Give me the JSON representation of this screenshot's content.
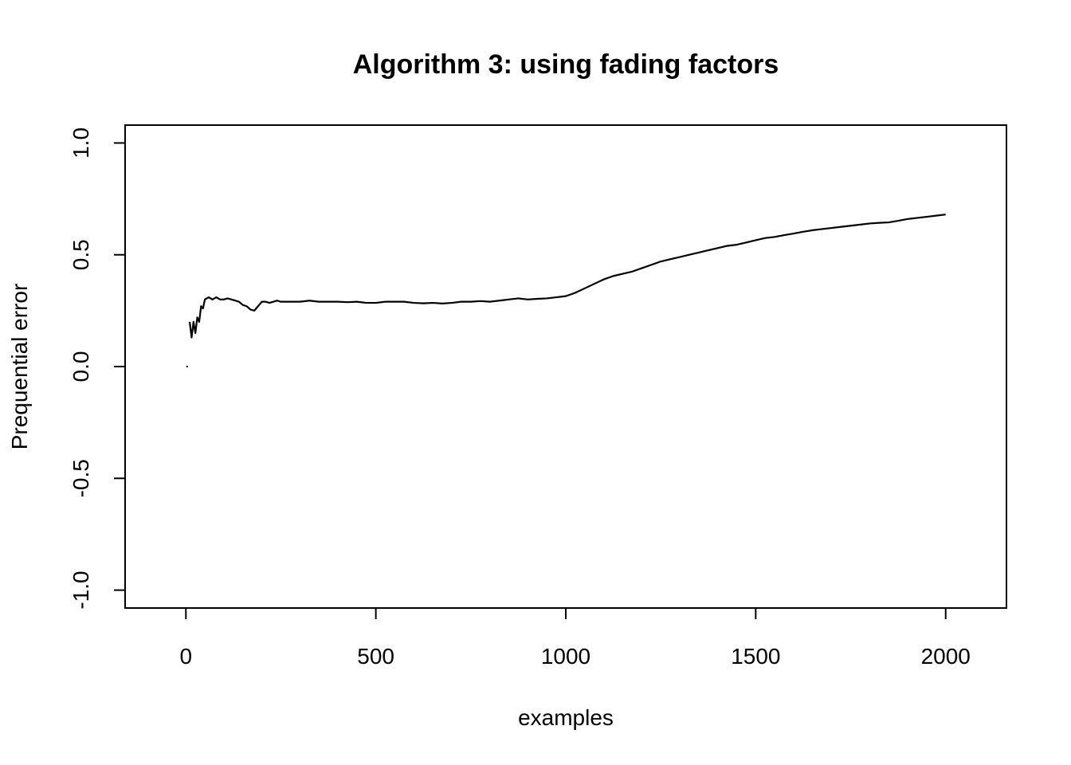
{
  "chart_data": {
    "type": "line",
    "title": "Algorithm 3: using fading factors",
    "xlabel": "examples",
    "ylabel": "Prequential error",
    "xlim": [
      -160,
      2160
    ],
    "ylim": [
      -1.08,
      1.08
    ],
    "xticks": [
      0,
      500,
      1000,
      1500,
      2000
    ],
    "xtick_labels": [
      "0",
      "500",
      "1000",
      "1500",
      "2000"
    ],
    "yticks": [
      -1.0,
      -0.5,
      0.0,
      0.5,
      1.0
    ],
    "ytick_labels": [
      "-1.0",
      "-0.5",
      "0.0",
      "0.5",
      "1.0"
    ],
    "grid": false,
    "series": [
      {
        "color": "#000000",
        "x": [
          1,
          5,
          10,
          15,
          20,
          25,
          30,
          35,
          40,
          45,
          50,
          60,
          70,
          80,
          90,
          100,
          110,
          120,
          130,
          140,
          150,
          160,
          170,
          180,
          190,
          200,
          210,
          220,
          230,
          240,
          250,
          275,
          300,
          325,
          350,
          375,
          400,
          425,
          450,
          475,
          500,
          525,
          550,
          575,
          600,
          625,
          650,
          675,
          700,
          725,
          750,
          775,
          800,
          825,
          850,
          875,
          900,
          925,
          950,
          975,
          1000,
          1025,
          1050,
          1075,
          1100,
          1125,
          1150,
          1175,
          1200,
          1225,
          1250,
          1275,
          1300,
          1325,
          1350,
          1375,
          1400,
          1425,
          1450,
          1475,
          1500,
          1525,
          1550,
          1575,
          1600,
          1625,
          1650,
          1675,
          1700,
          1725,
          1750,
          1775,
          1800,
          1825,
          1850,
          1875,
          1900,
          1925,
          1950,
          1975,
          2000
        ],
        "y": [
          0.0,
          0.0,
          0.2,
          0.13,
          0.2,
          0.15,
          0.22,
          0.2,
          0.27,
          0.26,
          0.3,
          0.31,
          0.3,
          0.31,
          0.3,
          0.3,
          0.305,
          0.3,
          0.295,
          0.29,
          0.275,
          0.27,
          0.255,
          0.25,
          0.27,
          0.29,
          0.29,
          0.285,
          0.29,
          0.295,
          0.29,
          0.29,
          0.29,
          0.295,
          0.29,
          0.29,
          0.29,
          0.288,
          0.29,
          0.285,
          0.285,
          0.29,
          0.29,
          0.29,
          0.285,
          0.283,
          0.285,
          0.282,
          0.285,
          0.29,
          0.29,
          0.293,
          0.29,
          0.295,
          0.3,
          0.305,
          0.3,
          0.303,
          0.305,
          0.31,
          0.315,
          0.33,
          0.35,
          0.37,
          0.39,
          0.405,
          0.415,
          0.425,
          0.44,
          0.455,
          0.47,
          0.48,
          0.49,
          0.5,
          0.51,
          0.52,
          0.53,
          0.54,
          0.545,
          0.555,
          0.565,
          0.575,
          0.58,
          0.588,
          0.595,
          0.603,
          0.61,
          0.615,
          0.62,
          0.625,
          0.63,
          0.635,
          0.64,
          0.643,
          0.645,
          0.652,
          0.66,
          0.665,
          0.67,
          0.675,
          0.68
        ]
      }
    ]
  }
}
